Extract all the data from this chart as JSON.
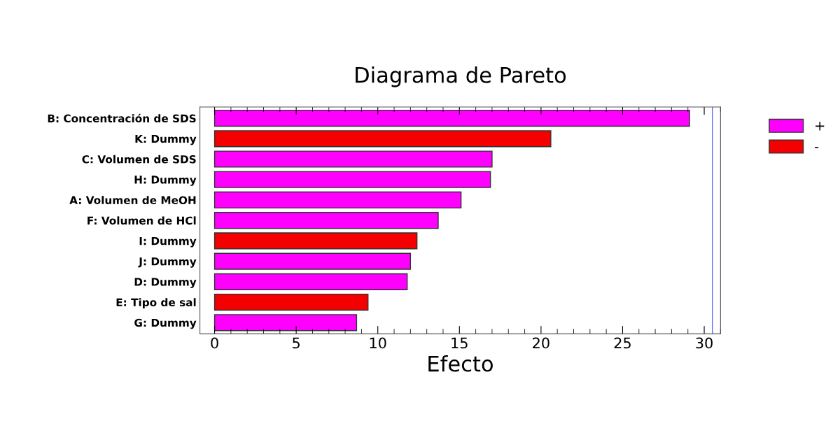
{
  "chart_data": {
    "type": "bar",
    "orientation": "horizontal",
    "title": "Diagrama de Pareto",
    "xlabel": "Efecto",
    "categories": [
      "B: Concentración de SDS",
      "K: Dummy",
      "C: Volumen de SDS",
      "H: Dummy",
      "A: Volumen de MeOH",
      "F: Volumen de HCl",
      "I: Dummy",
      "J: Dummy",
      "D: Dummy",
      "E: Tipo de sal",
      "G: Dummy"
    ],
    "series": [
      {
        "name": "+",
        "color": "#ff00ff",
        "values": [
          29.1,
          null,
          17.0,
          16.9,
          15.1,
          13.7,
          null,
          12.0,
          11.8,
          null,
          8.7
        ]
      },
      {
        "name": "-",
        "color": "#f50000",
        "values": [
          null,
          20.6,
          null,
          null,
          null,
          null,
          12.4,
          null,
          null,
          9.4,
          null
        ]
      }
    ],
    "xlim": [
      -0.9,
      31.0
    ],
    "xticks": [
      0,
      5,
      10,
      15,
      20,
      25,
      30
    ],
    "ref_lines": [
      {
        "axis": "x",
        "value": 30.5,
        "color": "#6a6aff"
      }
    ],
    "legend": "right",
    "grid": false
  }
}
